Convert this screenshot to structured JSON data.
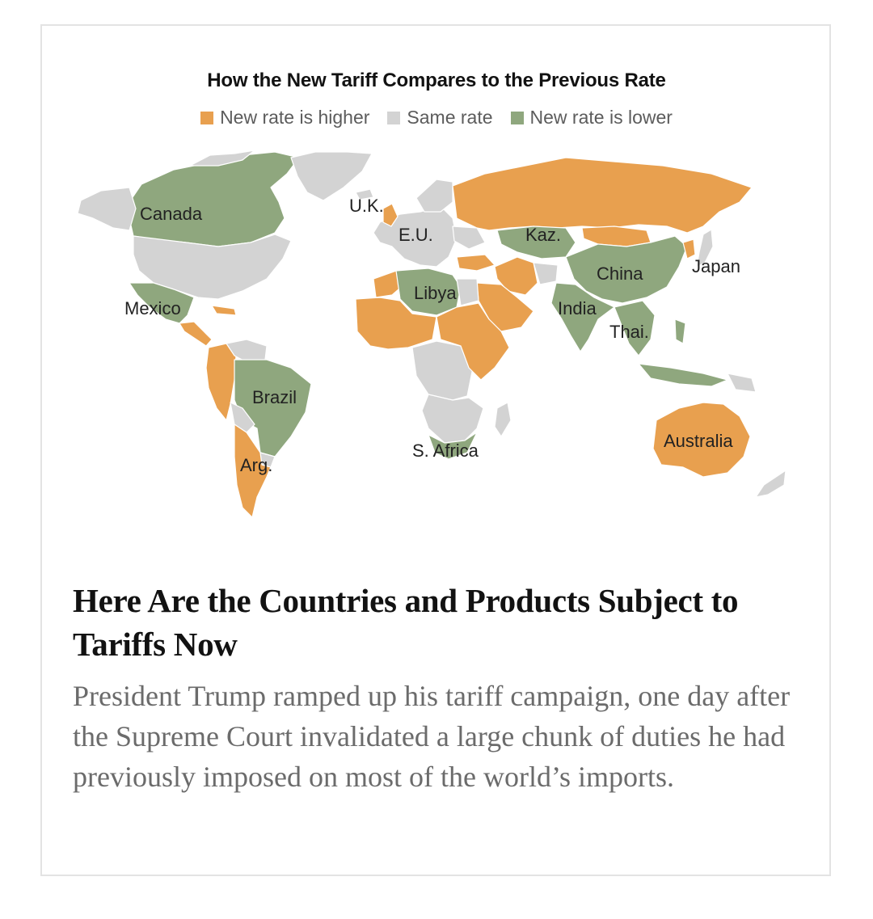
{
  "map": {
    "title": "How the New Tariff Compares to the Previous Rate",
    "legend": [
      {
        "label": "New rate is higher",
        "color": "#e8a04f"
      },
      {
        "label": "Same rate",
        "color": "#d3d3d3"
      },
      {
        "label": "New rate is lower",
        "color": "#8fa77e"
      }
    ],
    "labels": {
      "canada": "Canada",
      "uk": "U.K.",
      "eu": "E.U.",
      "kaz": "Kaz.",
      "japan": "Japan",
      "china": "China",
      "libya": "Libya",
      "india": "India",
      "mexico": "Mexico",
      "thai": "Thai.",
      "brazil": "Brazil",
      "safrica": "S. Africa",
      "australia": "Australia",
      "arg": "Arg."
    }
  },
  "article": {
    "headline": "Here Are the Countries and Products Subject to Tariffs Now",
    "summary": "President Trump ramped up his tariff campaign, one day after the Supreme Court invalidated a large chunk of duties he had previously imposed on most of the world’s imports."
  }
}
